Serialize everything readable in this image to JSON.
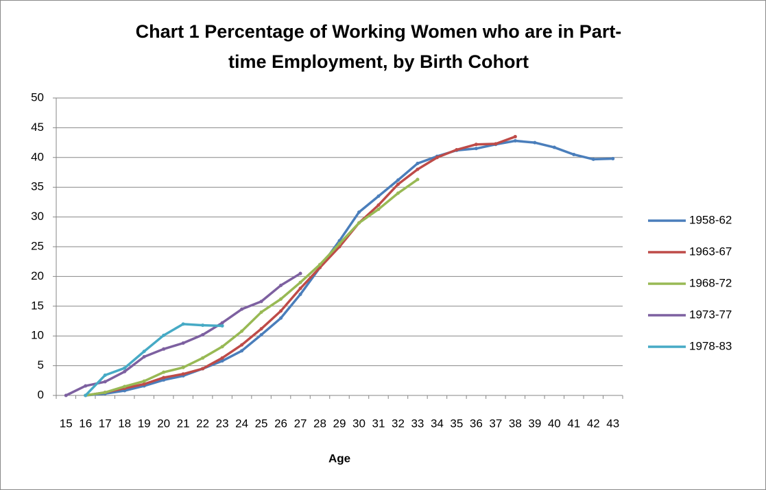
{
  "chart_data": {
    "type": "line",
    "title": [
      "Chart 1  Percentage of Working Women who are in Part-",
      "time Employment, by Birth Cohort"
    ],
    "x_label": "Age",
    "categories": [
      15,
      16,
      17,
      18,
      19,
      20,
      21,
      22,
      23,
      24,
      25,
      26,
      27,
      28,
      29,
      30,
      31,
      32,
      33,
      34,
      35,
      36,
      37,
      38,
      39,
      40,
      41,
      42,
      43
    ],
    "ylim": [
      0,
      50
    ],
    "yticks": [
      0,
      5,
      10,
      15,
      20,
      25,
      30,
      35,
      40,
      45,
      50
    ],
    "grid": true,
    "legend": "right",
    "series": [
      {
        "name": "1958-62",
        "color": "#4a7ebb",
        "values": [
          null,
          0,
          0.3,
          0.8,
          1.6,
          2.6,
          3.3,
          4.5,
          5.8,
          7.5,
          10.2,
          13,
          17,
          21.5,
          26,
          30.8,
          33.5,
          36.2,
          39,
          40.2,
          41.2,
          41.5,
          42.2,
          42.8,
          42.5,
          41.7,
          40.5,
          39.7,
          39.8
        ]
      },
      {
        "name": "1963-67",
        "color": "#be4b48",
        "values": [
          null,
          0,
          0.5,
          1.2,
          1.9,
          3,
          3.6,
          4.5,
          6.3,
          8.5,
          11.2,
          14.2,
          18,
          21.5,
          25,
          29,
          32,
          35.5,
          38,
          40,
          41.3,
          42.2,
          42.3,
          43.5,
          null,
          null,
          null,
          null,
          null
        ]
      },
      {
        "name": "1968-72",
        "color": "#98b954",
        "values": [
          null,
          0,
          0.5,
          1.5,
          2.4,
          3.9,
          4.7,
          6.3,
          8.2,
          10.8,
          14,
          16.2,
          19,
          22,
          25.5,
          29,
          31.3,
          34,
          36.3,
          null,
          null,
          null,
          null,
          null,
          null,
          null,
          null,
          null,
          null
        ]
      },
      {
        "name": "1973-77",
        "color": "#7d60a0",
        "values": [
          0,
          1.6,
          2.3,
          4,
          6.5,
          7.8,
          8.8,
          10.2,
          12.2,
          14.5,
          15.8,
          18.5,
          20.5,
          null,
          null,
          null,
          null,
          null,
          null,
          null,
          null,
          null,
          null,
          null,
          null,
          null,
          null,
          null,
          null
        ]
      },
      {
        "name": "1978-83",
        "color": "#46aac5",
        "values": [
          null,
          0,
          3.4,
          4.6,
          7.4,
          10.1,
          12,
          11.8,
          11.7,
          null,
          null,
          null,
          null,
          null,
          null,
          null,
          null,
          null,
          null,
          null,
          null,
          null,
          null,
          null,
          null,
          null,
          null,
          null,
          null
        ]
      }
    ]
  }
}
